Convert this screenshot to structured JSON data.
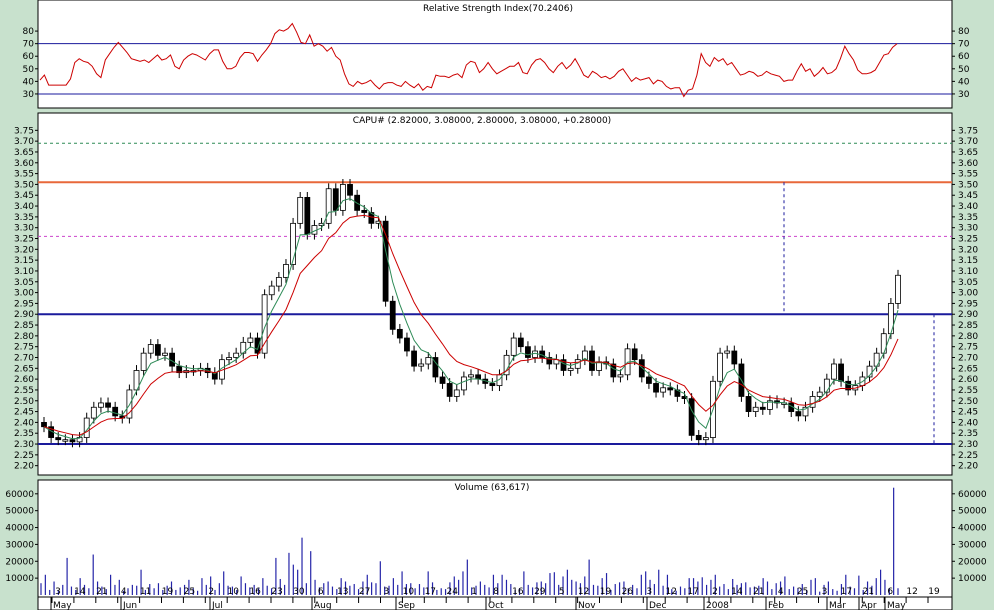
{
  "chart_data": [
    {
      "type": "line",
      "title": "Relative Strength Index(70.2406)",
      "ylim": [
        22,
        92
      ],
      "yticks": [
        30,
        40,
        50,
        60,
        70,
        80
      ],
      "reference_lines": [
        70,
        30
      ],
      "series": [
        {
          "color": "#cc0000",
          "values": [
            41,
            45,
            37,
            37,
            37,
            37,
            37,
            42,
            55,
            58,
            56,
            55,
            52,
            46,
            43,
            57,
            62,
            67,
            71,
            67,
            63,
            58,
            57,
            56,
            57,
            55,
            58,
            61,
            57,
            58,
            61,
            52,
            50,
            57,
            60,
            62,
            61,
            59,
            57,
            62,
            65,
            65,
            56,
            50,
            50,
            52,
            59,
            63,
            63,
            62,
            56,
            61,
            65,
            70,
            78,
            81,
            80,
            82,
            86,
            79,
            71,
            70,
            77,
            68,
            70,
            68,
            64,
            67,
            60,
            57,
            46,
            38,
            36,
            40,
            38,
            39,
            41,
            37,
            34,
            38,
            39,
            39,
            37,
            36,
            40,
            37,
            35,
            38,
            33,
            36,
            35,
            45,
            44,
            44,
            43,
            45,
            46,
            43,
            53,
            56,
            55,
            47,
            50,
            55,
            50,
            46,
            48,
            50,
            52,
            52,
            55,
            47,
            46,
            53,
            57,
            58,
            55,
            50,
            47,
            52,
            55,
            50,
            53,
            58,
            52,
            45,
            43,
            48,
            46,
            43,
            44,
            42,
            44,
            48,
            50,
            45,
            40,
            43,
            41,
            42,
            43,
            38,
            41,
            40,
            36,
            34,
            35,
            35,
            28,
            33,
            34,
            45,
            62,
            55,
            52,
            59,
            56,
            58,
            53,
            55,
            50,
            45,
            46,
            48,
            47,
            44,
            45,
            48,
            46,
            45,
            44,
            40,
            41,
            41,
            48,
            54,
            48,
            50,
            44,
            47,
            51,
            46,
            47,
            50,
            58,
            68,
            62,
            57,
            49,
            46,
            46,
            47,
            49,
            55,
            61,
            62,
            67,
            70
          ]
        }
      ]
    },
    {
      "type": "candlestick",
      "title": "CAPU# (2.82000, 3.08000, 2.80000, 3.08000, +0.28000)",
      "ylim": [
        2.18,
        3.77
      ],
      "yticks": [
        "2.20",
        "2.25",
        "2.30",
        "2.35",
        "2.40",
        "2.45",
        "2.50",
        "2.55",
        "2.60",
        "2.65",
        "2.70",
        "2.75",
        "2.80",
        "2.85",
        "2.90",
        "2.95",
        "3.00",
        "3.05",
        "3.10",
        "3.15",
        "3.20",
        "3.25",
        "3.30",
        "3.35",
        "3.40",
        "3.45",
        "3.50",
        "3.55",
        "3.60",
        "3.65",
        "3.70",
        "3.75"
      ],
      "closes": [
        2.38,
        2.33,
        2.32,
        2.32,
        2.31,
        2.33,
        2.42,
        2.47,
        2.49,
        2.47,
        2.43,
        2.42,
        2.55,
        2.64,
        2.72,
        2.76,
        2.71,
        2.72,
        2.66,
        2.63,
        2.64,
        2.64,
        2.65,
        2.63,
        2.6,
        2.69,
        2.7,
        2.72,
        2.77,
        2.79,
        2.72,
        2.99,
        3.03,
        3.07,
        3.13,
        3.32,
        3.44,
        3.27,
        3.31,
        3.32,
        3.48,
        3.38,
        3.5,
        3.45,
        3.38,
        3.37,
        3.32,
        3.33,
        2.96,
        2.83,
        2.79,
        2.73,
        2.66,
        2.67,
        2.7,
        2.61,
        2.58,
        2.52,
        2.55,
        2.61,
        2.62,
        2.6,
        2.58,
        2.57,
        2.62,
        2.71,
        2.79,
        2.75,
        2.7,
        2.73,
        2.7,
        2.67,
        2.69,
        2.64,
        2.65,
        2.69,
        2.73,
        2.64,
        2.68,
        2.67,
        2.61,
        2.62,
        2.74,
        2.69,
        2.61,
        2.58,
        2.54,
        2.56,
        2.55,
        2.52,
        2.51,
        2.34,
        2.32,
        2.33,
        2.59,
        2.72,
        2.73,
        2.67,
        2.52,
        2.45,
        2.47,
        2.46,
        2.5,
        2.49,
        2.49,
        2.45,
        2.43,
        2.47,
        2.52,
        2.54,
        2.6,
        2.67,
        2.59,
        2.55,
        2.57,
        2.61,
        2.66,
        2.72,
        2.81,
        2.95,
        3.08
      ],
      "ma_short_color": "#2e8b57",
      "ma_long_color": "#cc0000",
      "horizontal_levels": [
        {
          "value": 3.51,
          "color": "#e8683a",
          "style": "solid"
        },
        {
          "value": 3.69,
          "color": "#2e8b57",
          "style": "dashed"
        },
        {
          "value": 3.26,
          "color": "#cc44cc",
          "style": "dashed"
        },
        {
          "value": 2.9,
          "color": "#1a1a9c",
          "style": "solid"
        },
        {
          "value": 2.3,
          "color": "#1a1a9c",
          "style": "solid"
        }
      ]
    },
    {
      "type": "bar",
      "title": "Volume (63,617)",
      "ylim": [
        0,
        67000
      ],
      "yticks": [
        "10000",
        "20000",
        "30000",
        "40000",
        "50000",
        "60000"
      ],
      "color": "#2424a8",
      "values": [
        7000,
        12000,
        3000,
        8000,
        2500,
        6000,
        22000,
        5000,
        3000,
        10000,
        6000,
        4000,
        24000,
        8000,
        5000,
        3500,
        12000,
        6000,
        9000,
        2500,
        4000,
        6000,
        5500,
        15000,
        3000,
        6500,
        4000,
        7000,
        3000,
        5500,
        8000,
        3000,
        4500,
        6000,
        9000,
        4000,
        2500,
        10000,
        6000,
        11000,
        3000,
        7000,
        14000,
        5500,
        5000,
        3000,
        11000,
        7000,
        4500,
        6000,
        4000,
        10000,
        5500,
        4000,
        22000,
        9500,
        6000,
        25000,
        18000,
        15000,
        34000,
        7000,
        26000,
        9000,
        4500,
        7000,
        8000,
        5000,
        3500,
        10000,
        8000,
        5500,
        6500,
        3500,
        8000,
        12000,
        7500,
        7000,
        20000,
        5000,
        5500,
        10000,
        6000,
        14000,
        6500,
        7000,
        4000,
        6500,
        4500,
        14000,
        7500,
        3000,
        4000,
        3500,
        7500,
        11000,
        9000,
        14000,
        21000,
        4500,
        5500,
        8000,
        6000,
        4500,
        12000,
        7000,
        12000,
        9000,
        6500,
        3000,
        4000,
        14000,
        6000,
        4500,
        7500,
        8000,
        7000,
        13000,
        13500,
        6000,
        11000,
        15000,
        9000,
        8000,
        7000,
        11000,
        21000,
        6000,
        5500,
        10000,
        13000,
        3000,
        6500,
        7500,
        8000,
        4000,
        6000,
        4000,
        12000,
        14000,
        9000,
        6500,
        15000,
        5500,
        12000,
        3500,
        2500,
        5000,
        4000,
        10000,
        10000,
        8000,
        10500,
        6000,
        9000,
        12000,
        5000,
        6500,
        3500,
        9500,
        6000,
        7000,
        7500,
        4500,
        5000,
        5500,
        10000,
        8000,
        3500,
        7000,
        8000,
        11000,
        3500,
        5000,
        4000,
        6500,
        3000,
        9000,
        10000,
        2000,
        6000,
        8000,
        3500,
        2500,
        6500,
        12000,
        5000,
        4000,
        11500,
        3000,
        8000,
        5500,
        10000,
        15000,
        9000,
        4000,
        63617,
        4000
      ]
    }
  ],
  "x_axis": {
    "day_ticks": [
      "3",
      "14",
      "21",
      "4",
      "11",
      "19",
      "25",
      "2",
      "10",
      "16",
      "23",
      "30",
      "6",
      "13",
      "27",
      "3",
      "10",
      "17",
      "24",
      "1",
      "8",
      "16",
      "29",
      "5",
      "12",
      "19",
      "26",
      "3",
      "12",
      "17",
      "2",
      "14",
      "21",
      "4",
      "25",
      "3",
      "17",
      "21",
      "6",
      "12",
      "19"
    ],
    "month_labels": [
      "May",
      "Jun",
      "Jul",
      "Aug",
      "Sep",
      "Oct",
      "Nov",
      "Dec",
      "2008",
      "Feb",
      "Mar",
      "Apr",
      "May"
    ]
  }
}
